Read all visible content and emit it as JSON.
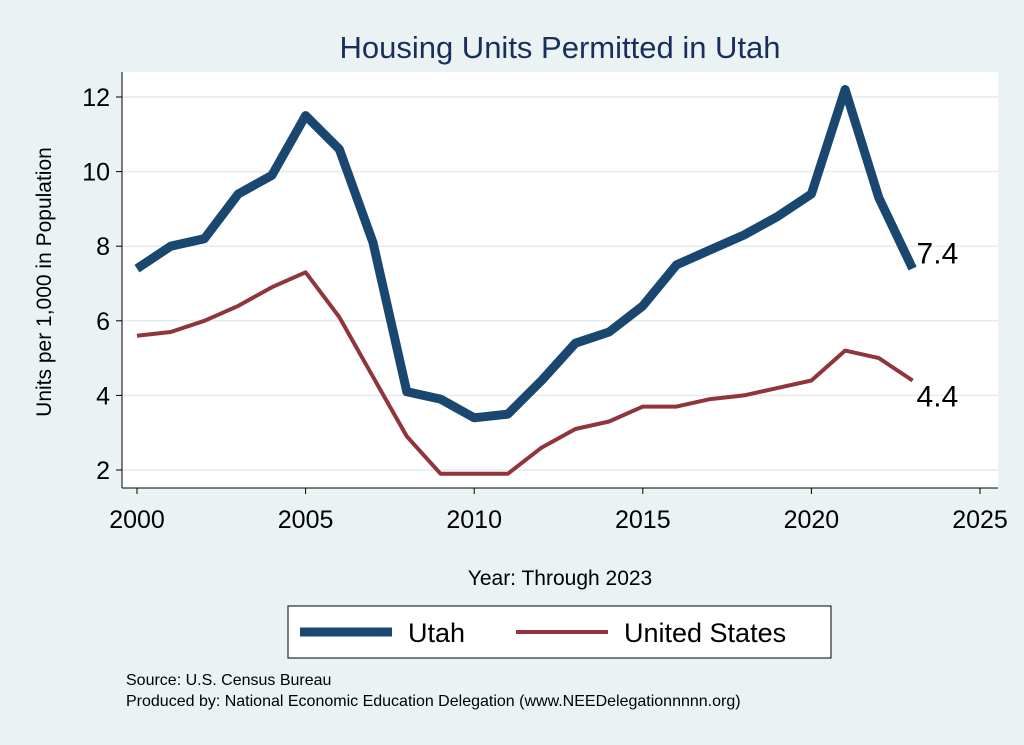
{
  "chart_data": {
    "type": "line",
    "title": "Housing Units Permitted in Utah",
    "xlabel": "Year: Through 2023",
    "ylabel": "Units per 1,000 in Population",
    "xlim": [
      2000,
      2025
    ],
    "ylim": [
      1.5,
      12.6
    ],
    "x_ticks": [
      2000,
      2005,
      2010,
      2015,
      2020,
      2025
    ],
    "y_ticks": [
      2,
      4,
      6,
      8,
      10,
      12
    ],
    "grid": true,
    "legend_position": "bottom",
    "x": [
      2000,
      2001,
      2002,
      2003,
      2004,
      2005,
      2006,
      2007,
      2008,
      2009,
      2010,
      2011,
      2012,
      2013,
      2014,
      2015,
      2016,
      2017,
      2018,
      2019,
      2020,
      2021,
      2022,
      2023
    ],
    "series": [
      {
        "name": "Utah",
        "color": "#1a476f",
        "values": [
          7.4,
          8.0,
          8.2,
          9.4,
          9.9,
          11.5,
          10.6,
          8.1,
          4.1,
          3.9,
          3.4,
          3.5,
          4.4,
          5.4,
          5.7,
          6.4,
          7.5,
          7.9,
          8.3,
          8.8,
          9.4,
          12.2,
          9.3,
          7.4
        ],
        "end_label": "7.4"
      },
      {
        "name": "United States",
        "color": "#90353b",
        "values": [
          5.6,
          5.7,
          6.0,
          6.4,
          6.9,
          7.3,
          6.1,
          4.5,
          2.9,
          1.9,
          1.9,
          1.9,
          2.6,
          3.1,
          3.3,
          3.7,
          3.7,
          3.9,
          4.0,
          4.2,
          4.4,
          5.2,
          5.0,
          4.4
        ],
        "end_label": "4.4"
      }
    ]
  },
  "footer": {
    "source": "Source: U.S. Census Bureau",
    "produced_by": "Produced by: National Economic Education Delegation (www.NEEDelegationnnnn.org)"
  }
}
